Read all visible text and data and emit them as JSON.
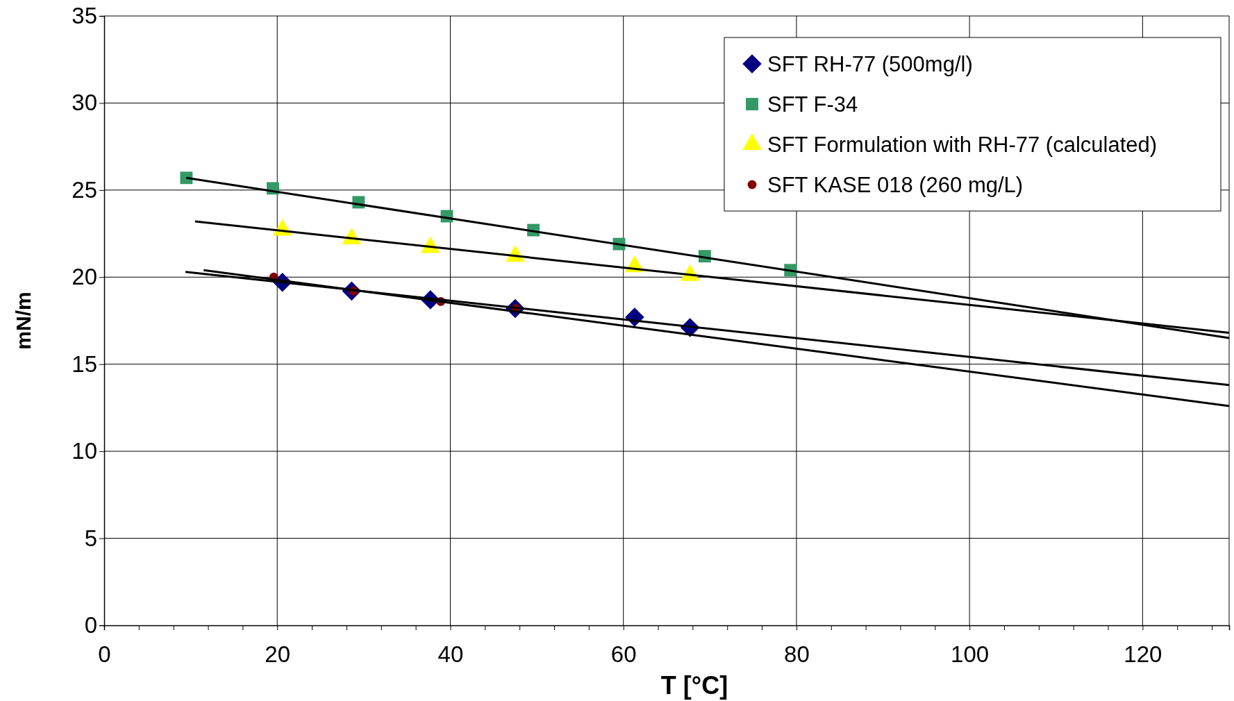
{
  "chart_data": {
    "type": "scatter",
    "xlabel": "T [°C]",
    "ylabel": "mN/m",
    "xlim": [
      0,
      130
    ],
    "ylim": [
      0,
      35
    ],
    "xticks": [
      0,
      {
        "value": 4,
        "label": null
      },
      {
        "value": 8,
        "label": null
      },
      {
        "value": 12,
        "label": null
      },
      {
        "value": 16,
        "label": null
      },
      20,
      {
        "value": 24,
        "label": null
      },
      {
        "value": 28,
        "label": null
      },
      {
        "value": 32,
        "label": null
      },
      {
        "value": 36,
        "label": null
      },
      40,
      {
        "value": 44,
        "label": null
      },
      {
        "value": 48,
        "label": null
      },
      {
        "value": 52,
        "label": null
      },
      {
        "value": 56,
        "label": null
      },
      60,
      {
        "value": 64,
        "label": null
      },
      {
        "value": 68,
        "label": null
      },
      {
        "value": 72,
        "label": null
      },
      {
        "value": 76,
        "label": null
      },
      80,
      {
        "value": 84,
        "label": null
      },
      {
        "value": 88,
        "label": null
      },
      {
        "value": 92,
        "label": null
      },
      {
        "value": 96,
        "label": null
      },
      100,
      {
        "value": 104,
        "label": null
      },
      {
        "value": 108,
        "label": null
      },
      {
        "value": 112,
        "label": null
      },
      {
        "value": 116,
        "label": null
      },
      120,
      {
        "value": 124,
        "label": null
      },
      {
        "value": 128,
        "label": null
      }
    ],
    "yticks": [
      0,
      5,
      10,
      15,
      20,
      25,
      30,
      35
    ],
    "grid": true,
    "legend": "top right",
    "series": [
      {
        "name": "SFT RH-77 (500mg/l)",
        "color": "#000080",
        "marker": "diamond",
        "x": [
          20.6,
          28.6,
          37.7,
          47.5,
          61.3,
          67.7
        ],
        "values": [
          19.7,
          19.2,
          18.7,
          18.2,
          17.7,
          17.1
        ]
      },
      {
        "name": "SFT F-34",
        "color": "#339966",
        "marker": "square",
        "x": [
          9.5,
          19.5,
          29.4,
          39.6,
          49.6,
          59.5,
          69.4,
          79.3
        ],
        "values": [
          25.7,
          25.1,
          24.3,
          23.5,
          22.7,
          21.9,
          21.2,
          20.4
        ]
      },
      {
        "name": "SFT Formulation with RH-77 (calculated)",
        "color": "#ffff00",
        "marker": "triangle",
        "x": [
          20.6,
          28.6,
          37.7,
          47.5,
          61.3,
          67.7
        ],
        "values": [
          22.7,
          22.2,
          21.7,
          21.2,
          20.6,
          20.1
        ]
      },
      {
        "name": "SFT KASE 018 (260 mg/L)",
        "color": "#800000",
        "marker": "circle",
        "x": [
          19.6,
          28.8,
          38.9,
          47.6
        ],
        "values": [
          20.0,
          19.2,
          18.6,
          18.2
        ]
      },
      {
        "type": "line",
        "color": "#000000",
        "marker": "none",
        "line_style": "solid",
        "x": [
          11.5,
          130
        ],
        "values": [
          20.4,
          12.6
        ]
      },
      {
        "type": "line",
        "color": "#000000",
        "marker": "none",
        "line_style": "solid",
        "x": [
          9.5,
          130
        ],
        "values": [
          25.7,
          16.5
        ]
      },
      {
        "type": "line",
        "color": "#000000",
        "marker": "none",
        "line_style": "solid",
        "x": [
          10.5,
          130
        ],
        "values": [
          23.2,
          16.8
        ]
      },
      {
        "type": "line",
        "color": "#000000",
        "marker": "none",
        "line_style": "solid",
        "x": [
          9.4,
          130
        ],
        "values": [
          20.3,
          13.8
        ]
      }
    ]
  }
}
